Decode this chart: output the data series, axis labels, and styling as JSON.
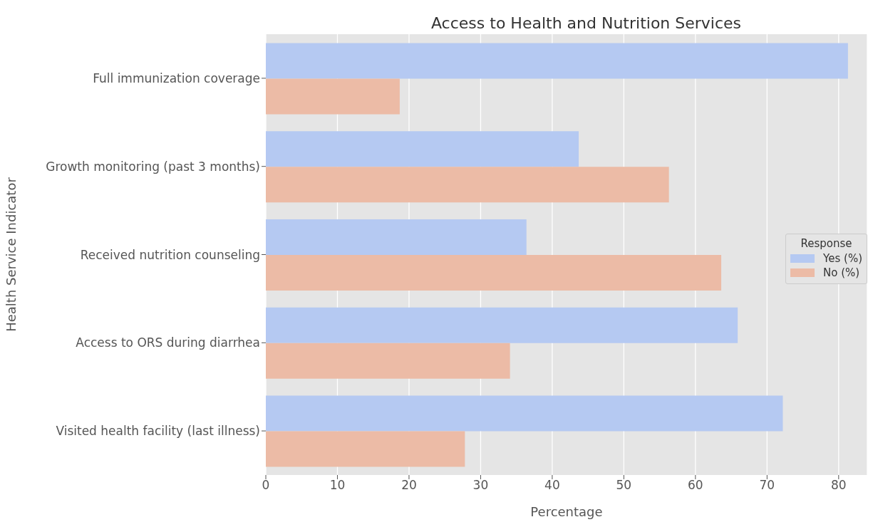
{
  "chart_data": {
    "type": "bar",
    "orientation": "horizontal",
    "title": "Access to Health and Nutrition Services",
    "xlabel": "Percentage",
    "ylabel": "Health Service Indicator",
    "legend_title": "Response",
    "categories": [
      "Full immunization coverage",
      "Growth monitoring (past 3 months)",
      "Received nutrition counseling",
      "Access to ORS during diarrhea",
      "Visited health facility (last illness)"
    ],
    "series": [
      {
        "name": "Yes (%)",
        "color": "#b5c9f2",
        "values": [
          81.3,
          43.7,
          36.4,
          65.9,
          72.2
        ]
      },
      {
        "name": "No (%)",
        "color": "#ecbba6",
        "values": [
          18.7,
          56.3,
          63.6,
          34.1,
          27.8
        ]
      }
    ],
    "xlim": [
      0,
      84
    ],
    "xticks": [
      0,
      10,
      20,
      30,
      40,
      50,
      60,
      70,
      80
    ],
    "grid": "x",
    "legend": "right"
  }
}
